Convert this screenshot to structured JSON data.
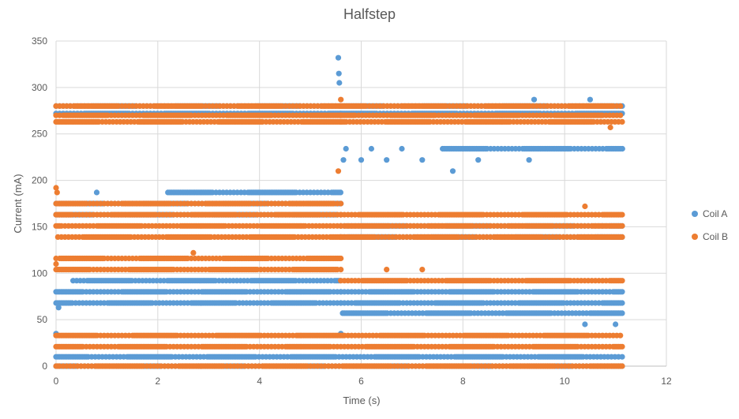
{
  "chart_data": {
    "type": "scatter",
    "title": "Halfstep",
    "xlabel": "Time (s)",
    "ylabel": "Current (mA)",
    "xlim": [
      0,
      12
    ],
    "ylim": [
      0,
      350
    ],
    "x_ticks": [
      "0",
      "2",
      "4",
      "6",
      "8",
      "10",
      "12"
    ],
    "y_ticks": [
      "0",
      "50",
      "100",
      "150",
      "200",
      "250",
      "300",
      "350"
    ],
    "grid": true,
    "legend_position": "right",
    "x_end": 11.15,
    "series": [
      {
        "name": "Coil A",
        "color": "#5B9BD5",
        "bands": [
          {
            "x": [
              0.0,
              11.15
            ],
            "y": 0
          },
          {
            "x": [
              0.0,
              11.15
            ],
            "y": 10
          },
          {
            "x": [
              0.0,
              5.6
            ],
            "y": 68
          },
          {
            "x": [
              0.0,
              5.6
            ],
            "y": 80
          },
          {
            "x": [
              0.3,
              5.6
            ],
            "y": 92
          },
          {
            "x": [
              0.0,
              5.6
            ],
            "y": 163
          },
          {
            "x": [
              0.0,
              5.6
            ],
            "y": 175
          },
          {
            "x": [
              2.2,
              5.6
            ],
            "y": 187
          },
          {
            "x": [
              0.0,
              5.6
            ],
            "y": 272
          },
          {
            "x": [
              0.0,
              5.6
            ],
            "y": 280
          },
          {
            "x": [
              5.6,
              11.15
            ],
            "y": 57
          },
          {
            "x": [
              5.6,
              11.15
            ],
            "y": 68
          },
          {
            "x": [
              5.6,
              11.15
            ],
            "y": 80
          },
          {
            "x": [
              5.6,
              11.15
            ],
            "y": 139
          },
          {
            "x": [
              5.6,
              11.15
            ],
            "y": 151
          },
          {
            "x": [
              7.6,
              11.15
            ],
            "y": 234
          },
          {
            "x": [
              5.6,
              11.15
            ],
            "y": 272
          },
          {
            "x": [
              5.6,
              11.15
            ],
            "y": 280
          }
        ],
        "points": [
          {
            "x": 5.55,
            "y": 332
          },
          {
            "x": 5.56,
            "y": 315
          },
          {
            "x": 5.57,
            "y": 305
          },
          {
            "x": 5.6,
            "y": 35
          },
          {
            "x": 5.65,
            "y": 222
          },
          {
            "x": 5.7,
            "y": 234
          },
          {
            "x": 6.0,
            "y": 222
          },
          {
            "x": 6.2,
            "y": 234
          },
          {
            "x": 6.5,
            "y": 222
          },
          {
            "x": 6.8,
            "y": 234
          },
          {
            "x": 7.2,
            "y": 222
          },
          {
            "x": 7.8,
            "y": 210
          },
          {
            "x": 8.3,
            "y": 222
          },
          {
            "x": 9.3,
            "y": 222
          },
          {
            "x": 10.4,
            "y": 45
          },
          {
            "x": 11.0,
            "y": 45
          },
          {
            "x": 9.4,
            "y": 287
          },
          {
            "x": 10.5,
            "y": 287
          },
          {
            "x": 0.0,
            "y": 35
          },
          {
            "x": 0.05,
            "y": 63
          },
          {
            "x": 0.8,
            "y": 187
          }
        ]
      },
      {
        "name": "Coil B",
        "color": "#ED7D31",
        "bands": [
          {
            "x": [
              0.0,
              11.15
            ],
            "y": 0
          },
          {
            "x": [
              0.0,
              11.15
            ],
            "y": 21
          },
          {
            "x": [
              0.0,
              11.15
            ],
            "y": 33
          },
          {
            "x": [
              0.0,
              5.6
            ],
            "y": 104
          },
          {
            "x": [
              0.0,
              5.6
            ],
            "y": 116
          },
          {
            "x": [
              0.0,
              5.6
            ],
            "y": 139
          },
          {
            "x": [
              0.0,
              5.6
            ],
            "y": 151
          },
          {
            "x": [
              0.0,
              5.6
            ],
            "y": 163
          },
          {
            "x": [
              0.0,
              5.6
            ],
            "y": 175
          },
          {
            "x": [
              0.0,
              5.6
            ],
            "y": 263
          },
          {
            "x": [
              0.0,
              5.6
            ],
            "y": 270
          },
          {
            "x": [
              0.0,
              5.6
            ],
            "y": 280
          },
          {
            "x": [
              5.6,
              11.15
            ],
            "y": 92
          },
          {
            "x": [
              5.6,
              11.15
            ],
            "y": 139
          },
          {
            "x": [
              5.6,
              11.15
            ],
            "y": 151
          },
          {
            "x": [
              5.6,
              11.15
            ],
            "y": 163
          },
          {
            "x": [
              5.6,
              11.15
            ],
            "y": 263
          },
          {
            "x": [
              5.6,
              11.15
            ],
            "y": 270
          },
          {
            "x": [
              5.6,
              11.15
            ],
            "y": 280
          }
        ],
        "points": [
          {
            "x": 0.0,
            "y": 192
          },
          {
            "x": 0.02,
            "y": 187
          },
          {
            "x": 5.55,
            "y": 210
          },
          {
            "x": 5.6,
            "y": 287
          },
          {
            "x": 0.0,
            "y": 110
          },
          {
            "x": 10.9,
            "y": 257
          },
          {
            "x": 2.7,
            "y": 122
          },
          {
            "x": 10.4,
            "y": 172
          },
          {
            "x": 6.5,
            "y": 104
          },
          {
            "x": 7.2,
            "y": 104
          }
        ]
      }
    ]
  }
}
